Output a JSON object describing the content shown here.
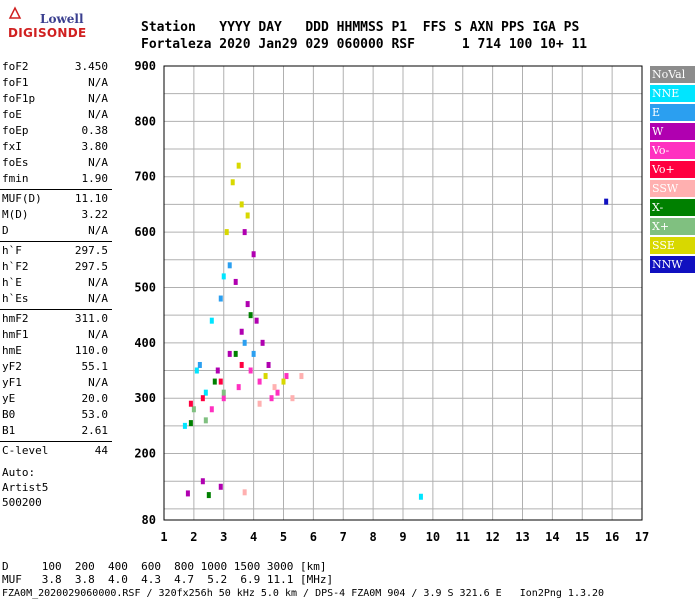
{
  "logo": {
    "line1": "Lowell",
    "line2": "DIGISONDE"
  },
  "header": {
    "line1": "Station   YYYY DAY   DDD HHMMSS P1  FFS S AXN PPS IGA PS",
    "line2": "Fortaleza 2020 Jan29 029 060000 RSF      1 714 100 10+ 11"
  },
  "params": [
    {
      "name": "foF2",
      "value": "3.450"
    },
    {
      "name": "foF1",
      "value": "N/A"
    },
    {
      "name": "foF1p",
      "value": "N/A"
    },
    {
      "name": "foE",
      "value": "N/A"
    },
    {
      "name": "foEp",
      "value": "0.38"
    },
    {
      "name": "fxI",
      "value": "3.80"
    },
    {
      "name": "foEs",
      "value": "N/A"
    },
    {
      "name": "fmin",
      "value": "1.90"
    },
    {
      "name": "MUF(D)",
      "value": "11.10"
    },
    {
      "name": "M(D)",
      "value": "3.22"
    },
    {
      "name": "D",
      "value": "N/A"
    },
    {
      "name": "h`F",
      "value": "297.5"
    },
    {
      "name": "h`F2",
      "value": "297.5"
    },
    {
      "name": "h`E",
      "value": "N/A"
    },
    {
      "name": "h`Es",
      "value": "N/A"
    },
    {
      "name": "hmF2",
      "value": "311.0"
    },
    {
      "name": "hmF1",
      "value": "N/A"
    },
    {
      "name": "hmE",
      "value": "110.0"
    },
    {
      "name": "yF2",
      "value": "55.1"
    },
    {
      "name": "yF1",
      "value": "N/A"
    },
    {
      "name": "yE",
      "value": "20.0"
    },
    {
      "name": "B0",
      "value": "53.0"
    },
    {
      "name": "B1",
      "value": "2.61"
    },
    {
      "name": "C-level",
      "value": "44"
    }
  ],
  "auto": {
    "line1": "Auto:",
    "line2": "Artist5",
    "line3": "500200"
  },
  "legend": [
    {
      "label": "NoVal",
      "color": "#8c8c8c"
    },
    {
      "label": "NNE",
      "color": "#00e5ff"
    },
    {
      "label": "E",
      "color": "#2b9ff0"
    },
    {
      "label": "W",
      "color": "#b000b0"
    },
    {
      "label": "Vo-",
      "color": "#ff30c0"
    },
    {
      "label": "Vo+",
      "color": "#ff0040"
    },
    {
      "label": "SSW",
      "color": "#ffb0b0"
    },
    {
      "label": "X-",
      "color": "#008000"
    },
    {
      "label": "X+",
      "color": "#80c080"
    },
    {
      "label": "SSE",
      "color": "#d8d800"
    },
    {
      "label": "NNW",
      "color": "#1010c0"
    }
  ],
  "chart_data": {
    "type": "scatter",
    "xlim": [
      1,
      17
    ],
    "ylim": [
      80,
      900
    ],
    "x_ticks": [
      1,
      2,
      3,
      4,
      5,
      6,
      7,
      8,
      9,
      10,
      11,
      12,
      13,
      14,
      15,
      16,
      17
    ],
    "y_ticks": [
      80,
      200,
      300,
      400,
      500,
      600,
      700,
      800,
      900
    ],
    "grid": true,
    "legend_placement": "right",
    "series": [
      {
        "name": "W",
        "color": "#b000b0",
        "points": [
          [
            3.6,
            420
          ],
          [
            3.8,
            470
          ],
          [
            4.1,
            440
          ],
          [
            4.3,
            400
          ],
          [
            3.2,
            380
          ],
          [
            2.8,
            350
          ],
          [
            3.4,
            510
          ],
          [
            4.5,
            360
          ],
          [
            4.0,
            560
          ],
          [
            3.7,
            600
          ],
          [
            2.3,
            150
          ],
          [
            2.9,
            140
          ],
          [
            1.8,
            128
          ]
        ]
      },
      {
        "name": "Vo-",
        "color": "#ff30c0",
        "points": [
          [
            3.0,
            300
          ],
          [
            3.5,
            320
          ],
          [
            4.2,
            330
          ],
          [
            4.8,
            310
          ],
          [
            5.1,
            340
          ],
          [
            2.6,
            280
          ],
          [
            3.9,
            350
          ],
          [
            4.6,
            300
          ]
        ]
      },
      {
        "name": "SSE",
        "color": "#d8d800",
        "points": [
          [
            3.3,
            690
          ],
          [
            3.6,
            650
          ],
          [
            3.1,
            600
          ],
          [
            3.8,
            630
          ],
          [
            3.5,
            720
          ],
          [
            4.4,
            340
          ],
          [
            5.0,
            330
          ]
        ]
      },
      {
        "name": "NNE",
        "color": "#00e5ff",
        "points": [
          [
            2.1,
            350
          ],
          [
            2.6,
            440
          ],
          [
            3.0,
            520
          ],
          [
            2.4,
            310
          ],
          [
            1.7,
            250
          ],
          [
            9.6,
            122
          ]
        ]
      },
      {
        "name": "E",
        "color": "#2b9ff0",
        "points": [
          [
            2.2,
            360
          ],
          [
            2.9,
            480
          ],
          [
            3.2,
            540
          ],
          [
            3.7,
            400
          ],
          [
            4.0,
            380
          ]
        ]
      },
      {
        "name": "X-",
        "color": "#008000",
        "points": [
          [
            3.4,
            380
          ],
          [
            2.7,
            330
          ],
          [
            3.9,
            450
          ],
          [
            1.9,
            255
          ],
          [
            2.5,
            125
          ]
        ]
      },
      {
        "name": "X+",
        "color": "#80c080",
        "points": [
          [
            2.0,
            280
          ],
          [
            2.4,
            260
          ],
          [
            3.0,
            310
          ]
        ]
      },
      {
        "name": "Vo+",
        "color": "#ff0040",
        "points": [
          [
            2.3,
            300
          ],
          [
            2.9,
            330
          ],
          [
            3.6,
            360
          ],
          [
            1.9,
            290
          ]
        ]
      },
      {
        "name": "SSW",
        "color": "#ffb0b0",
        "points": [
          [
            4.7,
            320
          ],
          [
            5.3,
            300
          ],
          [
            5.6,
            340
          ],
          [
            4.2,
            290
          ],
          [
            3.7,
            130
          ]
        ]
      },
      {
        "name": "NNW",
        "color": "#1010c0",
        "points": [
          [
            15.8,
            655
          ]
        ]
      }
    ]
  },
  "bottom": {
    "line1": "D     100  200  400  600  800 1000 1500 3000 [km]",
    "line2": "MUF   3.8  3.8  4.0  4.3  4.7  5.2  6.9 11.1 [MHz]",
    "line3": "FZA0M_2020029060000.RSF / 320fx256h 50 kHz 5.0 km / DPS-4 FZA0M 904 / 3.9 S 321.6 E   Ion2Png 1.3.20"
  }
}
